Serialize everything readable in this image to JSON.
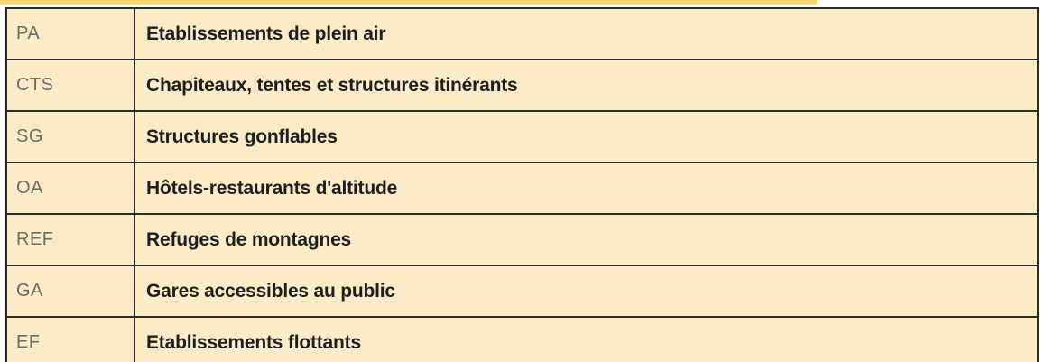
{
  "table": {
    "rows": [
      {
        "code": "PA",
        "label": "Etablissements de plein air"
      },
      {
        "code": "CTS",
        "label": "Chapiteaux, tentes et structures itinérants"
      },
      {
        "code": "SG",
        "label": "Structures gonflables"
      },
      {
        "code": "OA",
        "label": "Hôtels-restaurants d'altitude"
      },
      {
        "code": "REF",
        "label": "Refuges de montagnes"
      },
      {
        "code": "GA",
        "label": "Gares accessibles au public"
      },
      {
        "code": "EF",
        "label": "Etablissements flottants"
      }
    ]
  },
  "colors": {
    "cell_background": "#fbecc7",
    "border": "#2b2b2b",
    "top_accent": "#f7d77a",
    "code_text": "#6a6a6a",
    "label_text": "#1e1e1e"
  }
}
